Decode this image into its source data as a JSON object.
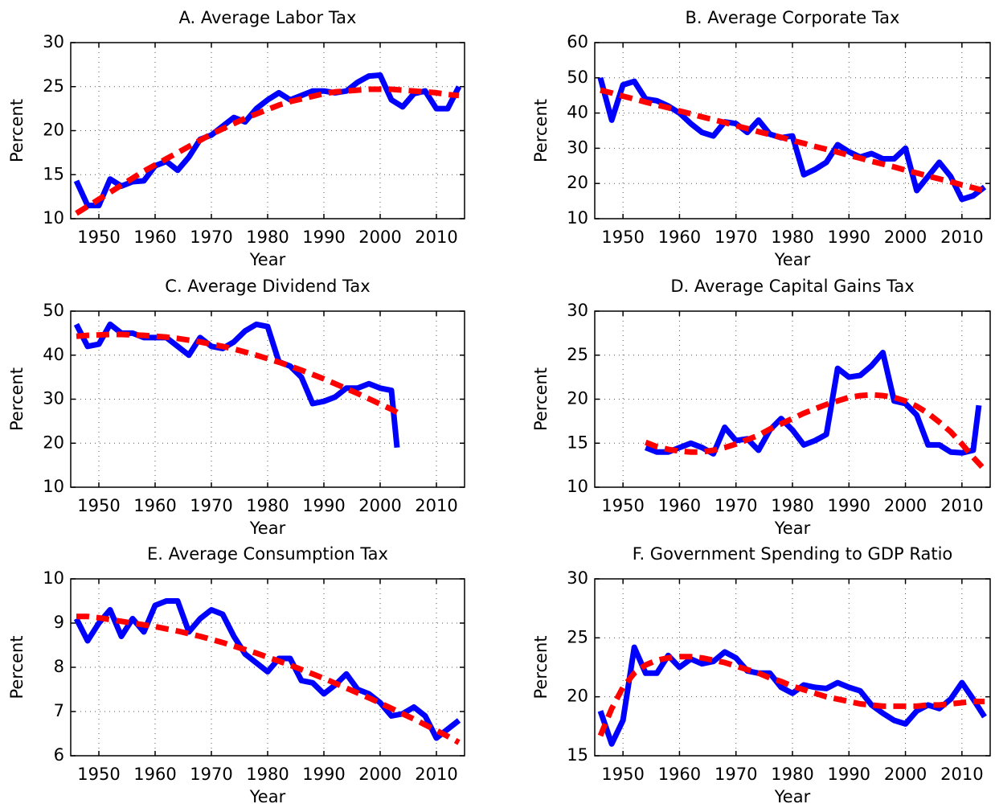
{
  "chart_data": [
    {
      "type": "line",
      "title": "A. Average Labor Tax",
      "xlabel": "Year",
      "ylabel": "Percent",
      "x": [
        1946,
        1948,
        1950,
        1952,
        1954,
        1956,
        1958,
        1960,
        1962,
        1964,
        1966,
        1968,
        1970,
        1972,
        1974,
        1976,
        1978,
        1980,
        1982,
        1984,
        1986,
        1988,
        1990,
        1992,
        1994,
        1996,
        1998,
        2000,
        2002,
        2004,
        2006,
        2008,
        2010,
        2012,
        2014
      ],
      "series": [
        {
          "color": "#0000ff",
          "dashed": false,
          "values": [
            14.3,
            11.5,
            11.5,
            14.5,
            13.7,
            14.2,
            14.3,
            16.0,
            16.5,
            15.5,
            17.0,
            19.0,
            19.5,
            20.5,
            21.5,
            21.0,
            22.5,
            23.5,
            24.3,
            23.5,
            24.0,
            24.5,
            24.5,
            24.3,
            24.5,
            25.5,
            26.2,
            26.3,
            23.5,
            22.7,
            24.2,
            24.5,
            22.5,
            22.5,
            25.0
          ]
        },
        {
          "color": "#ff0000",
          "dashed": true,
          "values": [
            10.6,
            11.4,
            12.2,
            13.0,
            13.8,
            14.6,
            15.4,
            16.1,
            16.8,
            17.5,
            18.2,
            18.9,
            19.6,
            20.2,
            20.8,
            21.4,
            21.9,
            22.4,
            22.9,
            23.3,
            23.6,
            23.9,
            24.2,
            24.4,
            24.5,
            24.6,
            24.7,
            24.7,
            24.7,
            24.6,
            24.5,
            24.4,
            24.3,
            24.1,
            24.0
          ]
        }
      ],
      "xlim": [
        1945,
        2015
      ],
      "xticks": [
        1950,
        1960,
        1970,
        1980,
        1990,
        2000,
        2010
      ],
      "ylim": [
        10,
        30
      ],
      "yticks": [
        10,
        15,
        20,
        25,
        30
      ],
      "grid": true
    },
    {
      "type": "line",
      "title": "B. Average Corporate Tax",
      "xlabel": "Year",
      "ylabel": "Percent",
      "x": [
        1946,
        1948,
        1950,
        1952,
        1954,
        1956,
        1958,
        1960,
        1962,
        1964,
        1966,
        1968,
        1970,
        1972,
        1974,
        1976,
        1978,
        1980,
        1982,
        1984,
        1986,
        1988,
        1990,
        1992,
        1994,
        1996,
        1998,
        2000,
        2002,
        2004,
        2006,
        2008,
        2010,
        2012,
        2014
      ],
      "series": [
        {
          "color": "#0000ff",
          "dashed": false,
          "values": [
            50,
            38,
            48,
            49,
            44,
            43.5,
            42,
            40,
            37,
            34.5,
            33.5,
            37.5,
            37,
            34.5,
            38,
            34,
            33,
            33.5,
            22.5,
            24,
            26,
            31,
            29,
            27.5,
            28.5,
            27,
            27,
            30,
            18,
            22,
            26,
            22,
            15.5,
            16.5,
            19
          ]
        },
        {
          "color": "#ff0000",
          "dashed": true,
          "values": [
            46.5,
            45.7,
            44.8,
            44.0,
            43.1,
            42.3,
            41.5,
            40.6,
            39.8,
            38.9,
            38.1,
            37.3,
            36.4,
            35.6,
            34.7,
            33.9,
            33.1,
            32.2,
            31.4,
            30.5,
            29.7,
            28.9,
            28.0,
            27.2,
            26.3,
            25.5,
            24.7,
            23.8,
            23.0,
            22.1,
            21.3,
            20.5,
            19.6,
            18.8,
            17.9
          ]
        }
      ],
      "xlim": [
        1945,
        2015
      ],
      "xticks": [
        1950,
        1960,
        1970,
        1980,
        1990,
        2000,
        2010
      ],
      "ylim": [
        10,
        60
      ],
      "yticks": [
        10,
        20,
        30,
        40,
        50,
        60
      ],
      "grid": true
    },
    {
      "type": "line",
      "title": "C. Average Dividend Tax",
      "xlabel": "Year",
      "ylabel": "Percent",
      "x": [
        1946,
        1948,
        1950,
        1952,
        1954,
        1956,
        1958,
        1960,
        1962,
        1964,
        1966,
        1968,
        1970,
        1972,
        1974,
        1976,
        1978,
        1980,
        1982,
        1984,
        1986,
        1988,
        1990,
        1992,
        1994,
        1996,
        1998,
        2000,
        2002,
        2003
      ],
      "series": [
        {
          "color": "#0000ff",
          "dashed": false,
          "values": [
            47,
            42,
            42.5,
            47,
            45,
            45,
            44,
            44,
            44,
            42,
            40,
            44,
            42,
            41.5,
            43,
            45.5,
            47,
            46.5,
            38.5,
            37.5,
            35,
            29,
            29.5,
            30.5,
            32.5,
            32.5,
            33.5,
            32.5,
            32,
            19
          ]
        },
        {
          "color": "#ff0000",
          "dashed": true,
          "values": [
            44.3,
            44.5,
            44.6,
            44.7,
            44.7,
            44.6,
            44.5,
            44.3,
            44.1,
            43.8,
            43.4,
            43.0,
            42.5,
            42.0,
            41.4,
            40.7,
            40.0,
            39.2,
            38.4,
            37.5,
            36.6,
            35.6,
            34.6,
            33.5,
            32.4,
            31.3,
            30.1,
            28.9,
            27.7,
            27.0
          ]
        }
      ],
      "xlim": [
        1945,
        2015
      ],
      "xticks": [
        1950,
        1960,
        1970,
        1980,
        1990,
        2000,
        2010
      ],
      "ylim": [
        10,
        50
      ],
      "yticks": [
        10,
        20,
        30,
        40,
        50
      ],
      "grid": true
    },
    {
      "type": "line",
      "title": "D. Average Capital Gains Tax",
      "xlabel": "Year",
      "ylabel": "Percent",
      "x": [
        1954,
        1956,
        1958,
        1960,
        1962,
        1964,
        1966,
        1968,
        1970,
        1972,
        1974,
        1976,
        1978,
        1980,
        1982,
        1984,
        1986,
        1988,
        1990,
        1992,
        1994,
        1996,
        1998,
        2000,
        2002,
        2004,
        2006,
        2008,
        2010,
        2012,
        2013,
        2014
      ],
      "series": [
        {
          "color": "#0000ff",
          "dashed": false,
          "values": [
            14.5,
            14,
            14,
            14.5,
            15,
            14.5,
            13.8,
            16.8,
            15.3,
            15.5,
            14.2,
            16.5,
            17.8,
            16.5,
            14.8,
            15.3,
            16,
            23.5,
            22.5,
            22.7,
            23.8,
            25.3,
            19.8,
            19.5,
            18.2,
            14.8,
            14.8,
            14,
            13.9,
            14.2,
            19.3,
            null
          ]
        },
        {
          "color": "#ff0000",
          "dashed": true,
          "values": [
            15.1,
            14.6,
            14.3,
            14.1,
            14.0,
            14.0,
            14.2,
            14.5,
            14.9,
            15.4,
            15.9,
            16.6,
            17.2,
            17.8,
            18.4,
            18.9,
            19.4,
            19.8,
            20.2,
            20.4,
            20.5,
            20.4,
            20.2,
            19.8,
            19.2,
            18.4,
            17.4,
            16.3,
            14.9,
            13.4,
            12.7,
            12.0
          ]
        }
      ],
      "xlim": [
        1945,
        2015
      ],
      "xticks": [
        1950,
        1960,
        1970,
        1980,
        1990,
        2000,
        2010
      ],
      "ylim": [
        10,
        30
      ],
      "yticks": [
        10,
        15,
        20,
        25,
        30
      ],
      "grid": true
    },
    {
      "type": "line",
      "title": "E. Average Consumption Tax",
      "xlabel": "Year",
      "ylabel": "Percent",
      "x": [
        1946,
        1948,
        1950,
        1952,
        1954,
        1956,
        1958,
        1960,
        1962,
        1964,
        1966,
        1968,
        1970,
        1972,
        1974,
        1976,
        1978,
        1980,
        1982,
        1984,
        1986,
        1988,
        1990,
        1992,
        1994,
        1996,
        1998,
        2000,
        2002,
        2004,
        2006,
        2008,
        2010,
        2012,
        2014
      ],
      "series": [
        {
          "color": "#0000ff",
          "dashed": false,
          "values": [
            9.1,
            8.6,
            9.0,
            9.3,
            8.7,
            9.1,
            8.8,
            9.4,
            9.5,
            9.5,
            8.8,
            9.1,
            9.3,
            9.2,
            8.7,
            8.3,
            8.1,
            7.9,
            8.2,
            8.2,
            7.7,
            7.65,
            7.4,
            7.6,
            7.85,
            7.5,
            7.4,
            7.2,
            6.9,
            6.95,
            7.1,
            6.9,
            6.4,
            6.6,
            6.8
          ]
        },
        {
          "color": "#ff0000",
          "dashed": true,
          "values": [
            9.15,
            9.15,
            9.12,
            9.08,
            9.04,
            9.0,
            8.96,
            8.92,
            8.87,
            8.82,
            8.76,
            8.7,
            8.63,
            8.56,
            8.48,
            8.4,
            8.32,
            8.23,
            8.14,
            8.05,
            7.95,
            7.85,
            7.75,
            7.64,
            7.53,
            7.42,
            7.31,
            7.19,
            7.07,
            6.95,
            6.83,
            6.7,
            6.57,
            6.44,
            6.3
          ]
        }
      ],
      "xlim": [
        1945,
        2015
      ],
      "xticks": [
        1950,
        1960,
        1970,
        1980,
        1990,
        2000,
        2010
      ],
      "ylim": [
        6,
        10
      ],
      "yticks": [
        6,
        7,
        8,
        9,
        10
      ],
      "grid": true
    },
    {
      "type": "line",
      "title": "F. Government Spending to GDP Ratio",
      "xlabel": "Year",
      "ylabel": "Percent",
      "x": [
        1946,
        1948,
        1950,
        1952,
        1954,
        1956,
        1958,
        1960,
        1962,
        1964,
        1966,
        1968,
        1970,
        1972,
        1974,
        1976,
        1978,
        1980,
        1982,
        1984,
        1986,
        1988,
        1990,
        1992,
        1994,
        1996,
        1998,
        2000,
        2002,
        2004,
        2006,
        2008,
        2010,
        2012,
        2014
      ],
      "series": [
        {
          "color": "#0000ff",
          "dashed": false,
          "values": [
            18.8,
            16,
            18,
            24.2,
            22,
            22,
            23.5,
            22.5,
            23.2,
            22.8,
            23,
            23.8,
            23.3,
            22.2,
            22,
            22,
            20.8,
            20.3,
            21,
            20.8,
            20.7,
            21.2,
            20.8,
            20.5,
            19.3,
            18.6,
            18,
            17.7,
            18.8,
            19.3,
            19,
            19.8,
            21.2,
            19.8,
            18.3
          ]
        },
        {
          "color": "#ff0000",
          "dashed": true,
          "values": [
            16.7,
            19.0,
            20.8,
            22.0,
            22.7,
            23.1,
            23.3,
            23.4,
            23.4,
            23.3,
            23.1,
            22.9,
            22.6,
            22.3,
            22.0,
            21.6,
            21.3,
            20.9,
            20.6,
            20.3,
            20.0,
            19.8,
            19.6,
            19.4,
            19.3,
            19.2,
            19.2,
            19.2,
            19.2,
            19.3,
            19.3,
            19.4,
            19.5,
            19.6,
            19.6
          ]
        }
      ],
      "xlim": [
        1945,
        2015
      ],
      "xticks": [
        1950,
        1960,
        1970,
        1980,
        1990,
        2000,
        2010
      ],
      "ylim": [
        15,
        30
      ],
      "yticks": [
        15,
        20,
        25,
        30
      ],
      "grid": true
    }
  ]
}
